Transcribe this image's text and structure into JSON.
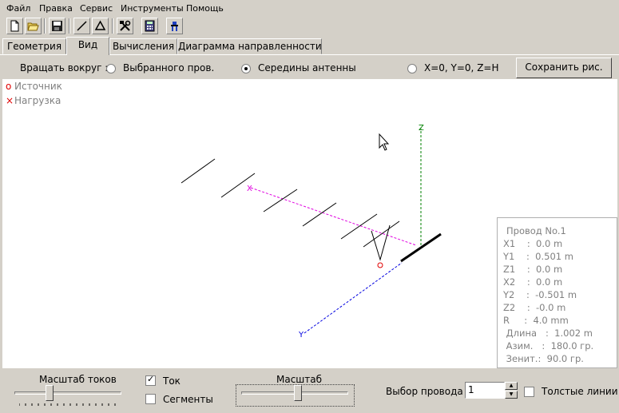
{
  "menu": [
    "Файл",
    "Правка",
    "Сервис",
    "Инструменты",
    "Помощь"
  ],
  "toolbar_icons": [
    "new-file-icon",
    "open-folder-icon",
    "save-icon",
    "line-icon",
    "triangle-icon",
    "tools-icon",
    "calculator-icon",
    "antenna-icon"
  ],
  "tabs": [
    "Геометрия",
    "Вид",
    "Вычисления",
    "Диаграмма направленности"
  ],
  "active_tab": "Вид",
  "rotate": {
    "label": "Вращать вокруг :",
    "options": [
      "Выбранного пров.",
      "Середины антенны",
      "X=0, Y=0, Z=H"
    ],
    "selected": "Середины антенны"
  },
  "save_button": "Сохранить рис.",
  "legend": {
    "source": "Источник",
    "load": "Нагрузка"
  },
  "axes": {
    "x": "X",
    "y": "Y",
    "z": "Z"
  },
  "wire_info": {
    "title": "Провод No.1",
    "lines": [
      "X1    :  0.0 m",
      "Y1    :  0.501 m",
      "Z1    :  0.0 m",
      "X2    :  0.0 m",
      "Y2    :  -0.501 m",
      "Z2    :  -0.0 m",
      "R     :  4.0 mm"
    ],
    "length": " Длина   :  1.002 m",
    "azimuth": " Азим.   :  180.0 гр.",
    "zenith": " Зенит.:  90.0 гр."
  },
  "bottom": {
    "current_scale_label": "Масштаб токов",
    "current_checkbox": "Ток",
    "current_checked": true,
    "segments_checkbox": "Сегменты",
    "segments_checked": false,
    "scale_label": "Масштаб",
    "wire_select_label": "Выбор провода",
    "wire_select_value": "1",
    "thick_lines_label": "Толстые линии",
    "thick_lines_checked": false
  },
  "colors": {
    "source_marker": "#e00000",
    "x_axis": "#e000e0",
    "y_axis": "#0000e0",
    "z_axis": "#008000"
  }
}
